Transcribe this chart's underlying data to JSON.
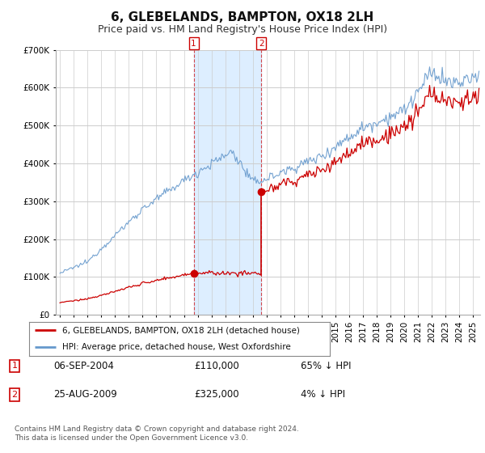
{
  "title": "6, GLEBELANDS, BAMPTON, OX18 2LH",
  "subtitle": "Price paid vs. HM Land Registry's House Price Index (HPI)",
  "title_fontsize": 11,
  "subtitle_fontsize": 9,
  "background_color": "#ffffff",
  "plot_bg_color": "#ffffff",
  "grid_color": "#cccccc",
  "legend_label_red": "6, GLEBELANDS, BAMPTON, OX18 2LH (detached house)",
  "legend_label_blue": "HPI: Average price, detached house, West Oxfordshire",
  "transaction1_date": "06-SEP-2004",
  "transaction1_price": "£110,000",
  "transaction1_hpi": "65% ↓ HPI",
  "transaction2_date": "25-AUG-2009",
  "transaction2_price": "£325,000",
  "transaction2_hpi": "4% ↓ HPI",
  "footer": "Contains HM Land Registry data © Crown copyright and database right 2024.\nThis data is licensed under the Open Government Licence v3.0.",
  "red_color": "#cc0000",
  "blue_color": "#6699cc",
  "highlight_bg": "#ddeeff",
  "ylim": [
    0,
    700000
  ],
  "yticks": [
    0,
    100000,
    200000,
    300000,
    400000,
    500000,
    600000,
    700000
  ],
  "price_t1": 110000,
  "price_t2": 325000,
  "t1_year": 2004.708,
  "t2_year": 2009.625
}
